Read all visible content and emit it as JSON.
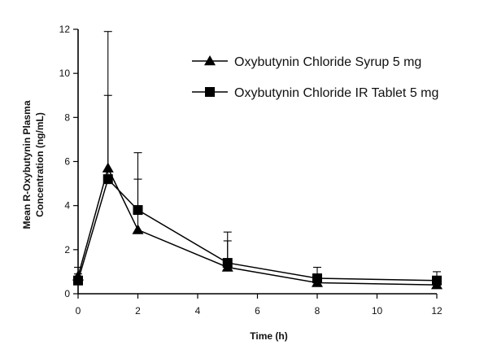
{
  "chart_data": {
    "type": "line",
    "title": "",
    "xlabel": "Time (h)",
    "ylabel": "Mean R-Oxybutynin Plasma Concentration (ng/mL)",
    "ylabel_lines": [
      "Mean R-Oxybutynin Plasma",
      "Concentration (ng/mL)"
    ],
    "xlim": [
      0,
      12
    ],
    "ylim": [
      0,
      12
    ],
    "x_ticks": [
      0,
      2,
      4,
      6,
      8,
      10,
      12
    ],
    "y_ticks": [
      0,
      2,
      4,
      6,
      8,
      10,
      12
    ],
    "x_tick_labels": [
      "0",
      "2",
      "4",
      "6",
      "8",
      "10",
      "12"
    ],
    "y_tick_labels": [
      "0",
      "2",
      "4",
      "6",
      "8",
      "10",
      "12"
    ],
    "grid": false,
    "legend_position": "top-right",
    "series": [
      {
        "name": "Oxybutynin Chloride Syrup 5 mg",
        "marker": "triangle",
        "x": [
          0,
          1,
          2,
          5,
          8,
          12
        ],
        "y": [
          0.8,
          5.7,
          2.9,
          1.2,
          0.5,
          0.4
        ],
        "err_upper": [
          1.2,
          11.9,
          5.2,
          2.4,
          0.8,
          0.7
        ]
      },
      {
        "name": "Oxybutynin Chloride IR Tablet 5 mg",
        "marker": "square",
        "x": [
          0,
          1,
          2,
          5,
          8,
          12
        ],
        "y": [
          0.6,
          5.2,
          3.8,
          1.4,
          0.7,
          0.6
        ],
        "err_upper": [
          0.9,
          9.0,
          6.4,
          2.8,
          1.2,
          1.0
        ]
      }
    ]
  }
}
